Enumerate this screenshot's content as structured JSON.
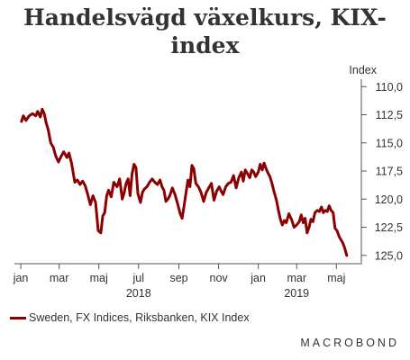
{
  "title": "Handelsvägd växelkurs, KIX-index",
  "title_line1": "Handelsvägd växelkurs, KIX-",
  "title_line2": "index",
  "brand": "MACROBOND",
  "colors": {
    "series": "#8b0000",
    "axis": "#555555",
    "text": "#333333"
  },
  "chart_data": {
    "type": "line",
    "title": "Handelsvägd växelkurs, KIX-index",
    "ylabel": "Index",
    "y_inverted": true,
    "ylim": [
      125.5,
      109.5
    ],
    "yticks": [
      110.0,
      112.5,
      115.0,
      117.5,
      120.0,
      122.5,
      125.0
    ],
    "ytick_labels": [
      "110,0",
      "112,5",
      "115,0",
      "117,5",
      "120,0",
      "122,5",
      "125,0"
    ],
    "xlim": [
      "2017-12-25",
      "2019-06-07"
    ],
    "xticks": [
      {
        "date": "2018-01-01",
        "label": "jan"
      },
      {
        "date": "2018-03-01",
        "label": "mar"
      },
      {
        "date": "2018-05-01",
        "label": "maj"
      },
      {
        "date": "2018-07-01",
        "label": "jul"
      },
      {
        "date": "2018-09-01",
        "label": "sep"
      },
      {
        "date": "2018-11-01",
        "label": "nov"
      },
      {
        "date": "2019-01-01",
        "label": "jan"
      },
      {
        "date": "2019-03-01",
        "label": "mar"
      },
      {
        "date": "2019-05-01",
        "label": "maj"
      }
    ],
    "year_labels": [
      {
        "date": "2018-07-01",
        "label": "2018"
      },
      {
        "date": "2019-03-01",
        "label": "2019"
      }
    ],
    "grid": false,
    "legend_position": "bottom-left",
    "series": [
      {
        "name": "Sweden, FX Indices, Riksbanken, KIX Index",
        "color": "#8b0000",
        "points": [
          [
            "2018-01-02",
            113.1
          ],
          [
            "2018-01-05",
            112.6
          ],
          [
            "2018-01-09",
            113.0
          ],
          [
            "2018-01-14",
            112.6
          ],
          [
            "2018-01-19",
            112.4
          ],
          [
            "2018-01-24",
            112.6
          ],
          [
            "2018-01-27",
            112.2
          ],
          [
            "2018-01-31",
            112.7
          ],
          [
            "2018-02-03",
            112.0
          ],
          [
            "2018-02-06",
            112.4
          ],
          [
            "2018-02-09",
            113.2
          ],
          [
            "2018-02-12",
            113.8
          ],
          [
            "2018-02-16",
            115.0
          ],
          [
            "2018-02-20",
            115.4
          ],
          [
            "2018-02-24",
            116.2
          ],
          [
            "2018-02-28",
            116.7
          ],
          [
            "2018-03-04",
            116.2
          ],
          [
            "2018-03-08",
            115.8
          ],
          [
            "2018-03-13",
            116.3
          ],
          [
            "2018-03-16",
            115.9
          ],
          [
            "2018-03-20",
            116.8
          ],
          [
            "2018-03-25",
            118.5
          ],
          [
            "2018-03-29",
            118.3
          ],
          [
            "2018-04-02",
            118.7
          ],
          [
            "2018-04-06",
            118.4
          ],
          [
            "2018-04-10",
            118.8
          ],
          [
            "2018-04-14",
            119.6
          ],
          [
            "2018-04-18",
            120.5
          ],
          [
            "2018-04-22",
            119.7
          ],
          [
            "2018-04-26",
            120.3
          ],
          [
            "2018-04-30",
            122.8
          ],
          [
            "2018-05-04",
            123.0
          ],
          [
            "2018-05-07",
            121.5
          ],
          [
            "2018-05-10",
            121.2
          ],
          [
            "2018-05-13",
            119.7
          ],
          [
            "2018-05-16",
            119.2
          ],
          [
            "2018-05-20",
            119.8
          ],
          [
            "2018-05-24",
            118.5
          ],
          [
            "2018-05-29",
            118.9
          ],
          [
            "2018-06-02",
            118.2
          ],
          [
            "2018-06-06",
            120.0
          ],
          [
            "2018-06-09",
            119.4
          ],
          [
            "2018-06-12",
            118.6
          ],
          [
            "2018-06-15",
            118.2
          ],
          [
            "2018-06-18",
            119.7
          ],
          [
            "2018-06-21",
            117.8
          ],
          [
            "2018-06-24",
            116.9
          ],
          [
            "2018-06-27",
            117.2
          ],
          [
            "2018-06-30",
            119.5
          ],
          [
            "2018-07-04",
            120.3
          ],
          [
            "2018-07-07",
            119.4
          ],
          [
            "2018-07-10",
            119.1
          ],
          [
            "2018-07-14",
            118.9
          ],
          [
            "2018-07-18",
            118.5
          ],
          [
            "2018-07-22",
            118.2
          ],
          [
            "2018-07-26",
            118.5
          ],
          [
            "2018-07-30",
            118.7
          ],
          [
            "2018-08-03",
            118.3
          ],
          [
            "2018-08-06",
            118.9
          ],
          [
            "2018-08-09",
            119.2
          ],
          [
            "2018-08-12",
            120.2
          ],
          [
            "2018-08-15",
            120.0
          ],
          [
            "2018-08-18",
            119.7
          ],
          [
            "2018-08-22",
            119.0
          ],
          [
            "2018-08-26",
            119.6
          ],
          [
            "2018-08-30",
            120.4
          ],
          [
            "2018-09-03",
            121.3
          ],
          [
            "2018-09-06",
            121.7
          ],
          [
            "2018-09-09",
            120.6
          ],
          [
            "2018-09-12",
            119.4
          ],
          [
            "2018-09-15",
            118.3
          ],
          [
            "2018-09-18",
            118.9
          ],
          [
            "2018-09-21",
            117.0
          ],
          [
            "2018-09-24",
            117.3
          ],
          [
            "2018-09-27",
            118.6
          ],
          [
            "2018-10-01",
            118.9
          ],
          [
            "2018-10-05",
            119.4
          ],
          [
            "2018-10-09",
            120.2
          ],
          [
            "2018-10-13",
            119.4
          ],
          [
            "2018-10-17",
            119.0
          ],
          [
            "2018-10-21",
            118.6
          ],
          [
            "2018-10-25",
            120.1
          ],
          [
            "2018-10-29",
            119.3
          ],
          [
            "2018-11-02",
            118.9
          ],
          [
            "2018-11-05",
            119.3
          ],
          [
            "2018-11-08",
            119.6
          ],
          [
            "2018-11-12",
            118.9
          ],
          [
            "2018-11-16",
            118.6
          ],
          [
            "2018-11-20",
            118.5
          ],
          [
            "2018-11-24",
            117.9
          ],
          [
            "2018-11-28",
            119.0
          ],
          [
            "2018-12-02",
            118.1
          ],
          [
            "2018-12-06",
            117.6
          ],
          [
            "2018-12-09",
            118.4
          ],
          [
            "2018-12-12",
            117.4
          ],
          [
            "2018-12-15",
            117.7
          ],
          [
            "2018-12-19",
            118.1
          ],
          [
            "2018-12-22",
            117.4
          ],
          [
            "2018-12-25",
            117.6
          ],
          [
            "2018-12-28",
            118.0
          ],
          [
            "2019-01-01",
            117.6
          ],
          [
            "2019-01-04",
            116.9
          ],
          [
            "2019-01-07",
            117.4
          ],
          [
            "2019-01-10",
            116.8
          ],
          [
            "2019-01-13",
            117.3
          ],
          [
            "2019-01-16",
            117.7
          ],
          [
            "2019-01-19",
            118.0
          ],
          [
            "2019-01-22",
            118.6
          ],
          [
            "2019-01-25",
            119.3
          ],
          [
            "2019-01-29",
            120.1
          ],
          [
            "2019-02-01",
            121.0
          ],
          [
            "2019-02-04",
            121.8
          ],
          [
            "2019-02-07",
            122.3
          ],
          [
            "2019-02-10",
            121.9
          ],
          [
            "2019-02-13",
            122.1
          ],
          [
            "2019-02-17",
            121.3
          ],
          [
            "2019-02-21",
            121.8
          ],
          [
            "2019-02-25",
            122.5
          ],
          [
            "2019-03-01",
            122.3
          ],
          [
            "2019-03-05",
            122.0
          ],
          [
            "2019-03-08",
            121.4
          ],
          [
            "2019-03-11",
            122.1
          ],
          [
            "2019-03-14",
            121.7
          ],
          [
            "2019-03-17",
            123.0
          ],
          [
            "2019-03-20",
            122.5
          ],
          [
            "2019-03-23",
            121.8
          ],
          [
            "2019-03-26",
            122.0
          ],
          [
            "2019-03-29",
            121.2
          ],
          [
            "2019-04-02",
            121.0
          ],
          [
            "2019-04-05",
            121.1
          ],
          [
            "2019-04-08",
            120.7
          ],
          [
            "2019-04-11",
            121.2
          ],
          [
            "2019-04-14",
            121.0
          ],
          [
            "2019-04-17",
            121.1
          ],
          [
            "2019-04-20",
            120.6
          ],
          [
            "2019-04-23",
            121.0
          ],
          [
            "2019-04-26",
            121.2
          ],
          [
            "2019-04-29",
            122.6
          ],
          [
            "2019-05-02",
            122.8
          ],
          [
            "2019-05-05",
            123.3
          ],
          [
            "2019-05-08",
            123.6
          ],
          [
            "2019-05-11",
            123.9
          ],
          [
            "2019-05-14",
            124.4
          ],
          [
            "2019-05-17",
            125.0
          ]
        ]
      }
    ]
  }
}
